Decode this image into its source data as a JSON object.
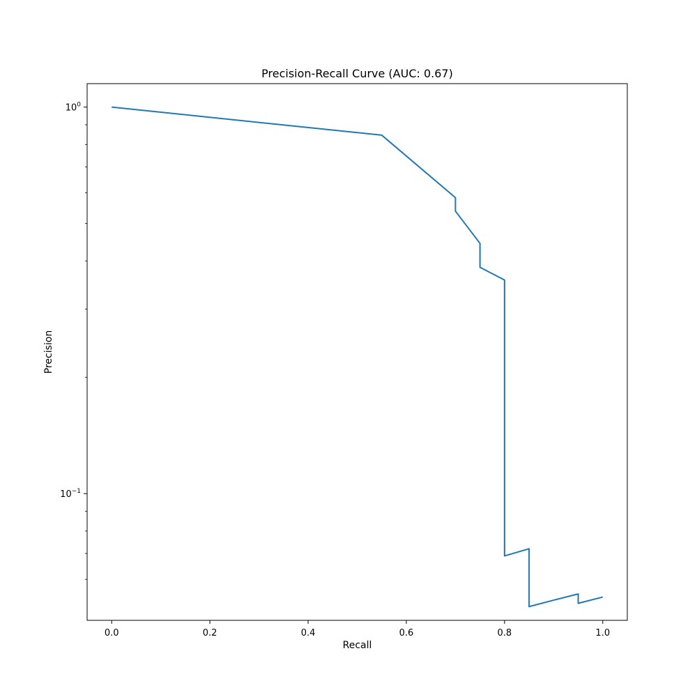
{
  "chart_data": {
    "type": "line",
    "title": "Precision-Recall Curve (AUC: 0.67)",
    "xlabel": "Recall",
    "ylabel": "Precision",
    "xlim": [
      -0.05,
      1.05
    ],
    "ylim": [
      0.047,
      1.15
    ],
    "yscale": "log",
    "grid": false,
    "legend": "none",
    "x_ticks": [
      {
        "value": 0.0,
        "label": "0.0"
      },
      {
        "value": 0.2,
        "label": "0.2"
      },
      {
        "value": 0.4,
        "label": "0.4"
      },
      {
        "value": 0.6,
        "label": "0.6"
      },
      {
        "value": 0.8,
        "label": "0.8"
      },
      {
        "value": 1.0,
        "label": "1.0"
      }
    ],
    "y_ticks": [
      {
        "value": 1.0,
        "base": "10",
        "exp": "0"
      },
      {
        "value": 0.1,
        "base": "10",
        "exp": "−1"
      }
    ],
    "y_minor_ticks": [
      0.06,
      0.07,
      0.08,
      0.09,
      0.2,
      0.3,
      0.4,
      0.5,
      0.6,
      0.7,
      0.8,
      0.9
    ],
    "series": [
      {
        "color": "#1f77b4",
        "x": [
          0.0,
          0.55,
          0.7,
          0.7,
          0.75,
          0.75,
          0.8,
          0.8,
          0.85,
          0.85,
          0.9,
          0.95,
          0.95,
          1.0
        ],
        "y": [
          1.0,
          0.846,
          0.583,
          0.538,
          0.444,
          0.385,
          0.357,
          0.069,
          0.072,
          0.051,
          0.053,
          0.055,
          0.052,
          0.054
        ]
      }
    ]
  }
}
